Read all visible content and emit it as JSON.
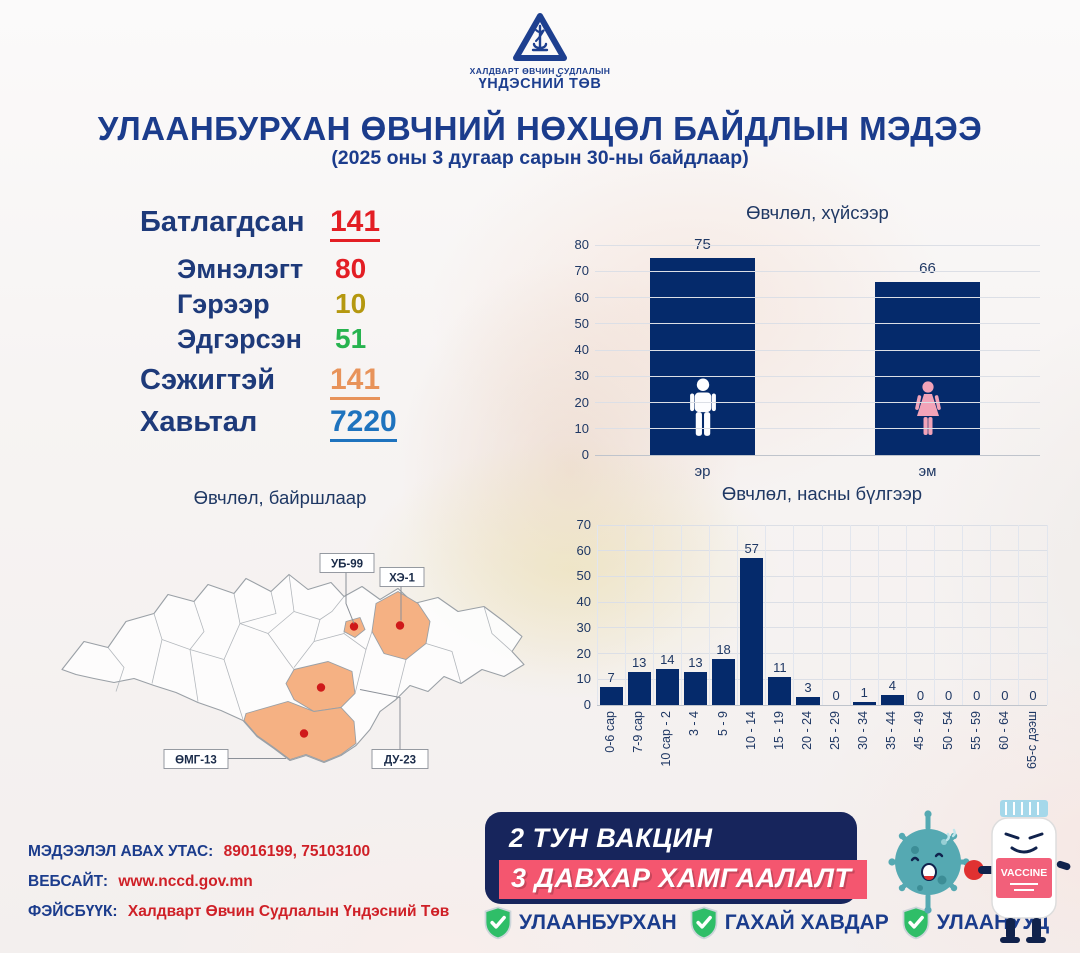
{
  "logo": {
    "org_line1": "ХАЛДВАРТ ӨВЧИН СУДЛАЛЫН",
    "org_line2": "ҮНДЭСНИЙ ТӨВ"
  },
  "header": {
    "title": "УЛААНБУРХАН ӨВЧНИЙ НӨХЦӨЛ БАЙДЛЫН МЭДЭЭ",
    "subtitle": "(2025 оны 3 дугаар сарын 30-ны байдлаар)"
  },
  "stats": {
    "items": [
      {
        "label": "Батлагдсан",
        "value": "141",
        "color": "#e31e24"
      },
      {
        "label": "Эмнэлэгт",
        "value": "80",
        "color": "#e31e24"
      },
      {
        "label": "Гэрээр",
        "value": "10",
        "color": "#b5980f"
      },
      {
        "label": "Эдгэрсэн",
        "value": "51",
        "color": "#27b34f"
      },
      {
        "label": "Сэжигтэй",
        "value": "141",
        "color": "#e8935a"
      },
      {
        "label": "Хавьтал",
        "value": "7220",
        "color": "#1e73be"
      }
    ]
  },
  "chart_data": [
    {
      "type": "bar",
      "title": "Өвчлөл, хүйсээр",
      "categories": [
        "эр",
        "эм"
      ],
      "values": [
        75,
        66
      ],
      "ylim": [
        0,
        80
      ],
      "ytick_step": 10,
      "grid": true,
      "legend": "none",
      "bar_color": "#052a6b"
    },
    {
      "type": "bar",
      "title": "Өвчлөл, насны бүлгээр",
      "categories": [
        "0-6 сар",
        "7-9 сар",
        "10 сар - 2",
        "3 - 4",
        "5 - 9",
        "10 - 14",
        "15 - 19",
        "20 - 24",
        "25 - 29",
        "30 - 34",
        "35 - 44",
        "45 - 49",
        "50 - 54",
        "55 - 59",
        "60 - 64",
        "65-с дээш"
      ],
      "values": [
        7,
        13,
        14,
        13,
        18,
        57,
        11,
        3,
        0,
        1,
        4,
        0,
        0,
        0,
        0,
        0
      ],
      "ylim": [
        0,
        70
      ],
      "ytick_step": 10,
      "grid": true,
      "legend": "none",
      "bar_color": "#052a6b"
    }
  ],
  "map": {
    "title": "Өвчлөл, байршлаар",
    "regions": [
      {
        "code": "УБ-99"
      },
      {
        "code": "ХЭ-1"
      },
      {
        "code": "ӨМГ-13"
      },
      {
        "code": "ДУ-23"
      }
    ],
    "highlight_color": "#f5b183",
    "dot_color": "#cf1a1a"
  },
  "footer": {
    "phone_label": "МЭДЭЭЛЭЛ АВАХ УТАС:",
    "phone_value": "89016199, 75103100",
    "website_label": "ВЕБСАЙТ:",
    "website_value": "www.nccd.gov.mn",
    "facebook_label": "ФЭЙСБҮҮК:",
    "facebook_value": "Халдварт Өвчин Судлалын Үндэсний Төв",
    "banner_line1": "2 ТУН ВАКЦИН",
    "banner_line2": "3 ДАВХАР ХАМГААЛАЛТ",
    "vaccine_label": "VACCINE",
    "diseases": [
      "УЛААНБУРХАН",
      "ГАХАЙ ХАВДАР",
      "УЛААНУУД"
    ]
  },
  "colors": {
    "navy_text": "#1b3c8c",
    "bar_navy": "#052a6b",
    "banner_navy": "#17255c",
    "banner_pink": "#f4566f",
    "shield_green": "#2fbe68",
    "map_highlight": "#f5b183",
    "dot_red": "#cf1a1a",
    "contact_red": "#cf2027"
  }
}
